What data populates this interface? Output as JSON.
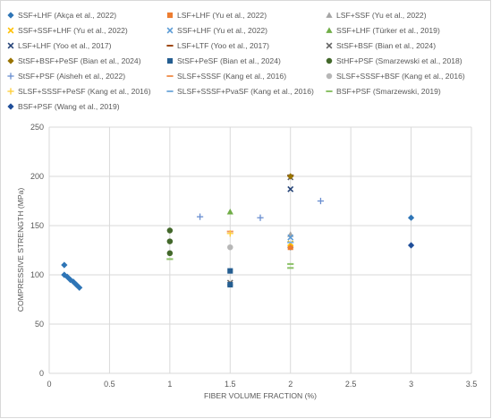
{
  "chart_data": {
    "type": "scatter",
    "xlabel": "FIBER VOLUME FRACTION (%)",
    "ylabel": "COMPRESSIVE STRENGTH (MPa)",
    "xlim": [
      0,
      3.5
    ],
    "ylim": [
      0,
      250
    ],
    "x_ticks": [
      "0",
      "0.5",
      "1",
      "1.5",
      "2",
      "2.5",
      "3",
      "3.5"
    ],
    "y_ticks": [
      "0",
      "50",
      "100",
      "150",
      "200",
      "250"
    ],
    "grid": true,
    "legend_position": "top",
    "series": [
      {
        "name": "SSF+LHF (Akça et al., 2022)",
        "marker": "diamond",
        "color": "#2e75b6",
        "points": [
          [
            0.125,
            110
          ],
          [
            0.125,
            100
          ],
          [
            0.15,
            98
          ],
          [
            0.175,
            95
          ],
          [
            0.2,
            93
          ],
          [
            0.225,
            90
          ],
          [
            0.25,
            87
          ],
          [
            2.0,
            128
          ],
          [
            3.0,
            158
          ]
        ]
      },
      {
        "name": "LSF+LHF (Yu et al., 2022)",
        "marker": "square",
        "color": "#ed7d31",
        "points": [
          [
            2.0,
            128
          ]
        ]
      },
      {
        "name": "LSF+SSF (Yu et al., 2022)",
        "marker": "triangle",
        "color": "#a5a5a5",
        "points": [
          [
            2.0,
            141
          ]
        ]
      },
      {
        "name": "SSF+SSF+LHF (Yu et al., 2022)",
        "marker": "x",
        "color": "#ffc000",
        "points": [
          [
            2.0,
            132
          ]
        ]
      },
      {
        "name": "SSF+LHF (Yu et al., 2022)",
        "marker": "x",
        "color": "#5b9bd5",
        "points": [
          [
            2.0,
            138
          ]
        ]
      },
      {
        "name": "SSF+LHF (Türker et al., 2019)",
        "marker": "triangle",
        "color": "#70ad47",
        "points": [
          [
            1.5,
            164
          ]
        ]
      },
      {
        "name": "LSF+LHF (Yoo et al., 2017)",
        "marker": "x",
        "color": "#264478",
        "points": [
          [
            2.0,
            187
          ]
        ]
      },
      {
        "name": "LSF+LTF (Yoo et al., 2017)",
        "marker": "dash",
        "color": "#9e480e",
        "points": [
          [
            2.0,
            201
          ]
        ]
      },
      {
        "name": "StSF+BSF (Bian et al., 2024)",
        "marker": "x",
        "color": "#636363",
        "points": [
          [
            1.5,
            92
          ],
          [
            2.0,
            199
          ]
        ]
      },
      {
        "name": "StSF+BSF+PeSF (Bian et al., 2024)",
        "marker": "diamond",
        "color": "#997300",
        "points": [
          [
            2.0,
            200
          ]
        ]
      },
      {
        "name": "StSF+PeSF (Bian et al., 2024)",
        "marker": "square",
        "color": "#255e91",
        "points": [
          [
            1.5,
            104
          ],
          [
            1.5,
            90
          ]
        ]
      },
      {
        "name": "StHF+PSF (Smarzewski et al., 2018)",
        "marker": "circle",
        "color": "#43682b",
        "points": [
          [
            1.0,
            145
          ],
          [
            1.0,
            134
          ],
          [
            1.0,
            122
          ]
        ]
      },
      {
        "name": "StSF+PSF (Aisheh et al., 2022)",
        "marker": "plus",
        "color": "#698ed0",
        "points": [
          [
            1.25,
            159
          ],
          [
            1.75,
            158
          ],
          [
            2.25,
            175
          ]
        ]
      },
      {
        "name": "SLSF+SSSF (Kang et al., 2016)",
        "marker": "dash",
        "color": "#f1975a",
        "points": [
          [
            1.5,
            144
          ]
        ]
      },
      {
        "name": "SLSF+SSSF+BSF (Kang et al., 2016)",
        "marker": "circle",
        "color": "#b7b7b7",
        "points": [
          [
            1.5,
            128
          ]
        ]
      },
      {
        "name": "SLSF+SSSF+PeSF (Kang et al., 2016)",
        "marker": "plus",
        "color": "#ffcd33",
        "points": [
          [
            1.5,
            142
          ]
        ]
      },
      {
        "name": "SLSF+SSSF+PvaSF (Kang et al., 2016)",
        "marker": "dash",
        "color": "#7cafdd",
        "points": [
          [
            2.0,
            133
          ]
        ]
      },
      {
        "name": "BSF+PSF (Smarzewski, 2019)",
        "marker": "dash",
        "color": "#8cc168",
        "points": [
          [
            1.0,
            116
          ],
          [
            2.0,
            111
          ],
          [
            2.0,
            107
          ]
        ]
      },
      {
        "name": "BSF+PSF (Wang et al., 2019)",
        "marker": "diamond",
        "color": "#1f4e99",
        "points": [
          [
            3.0,
            130
          ]
        ]
      }
    ]
  }
}
